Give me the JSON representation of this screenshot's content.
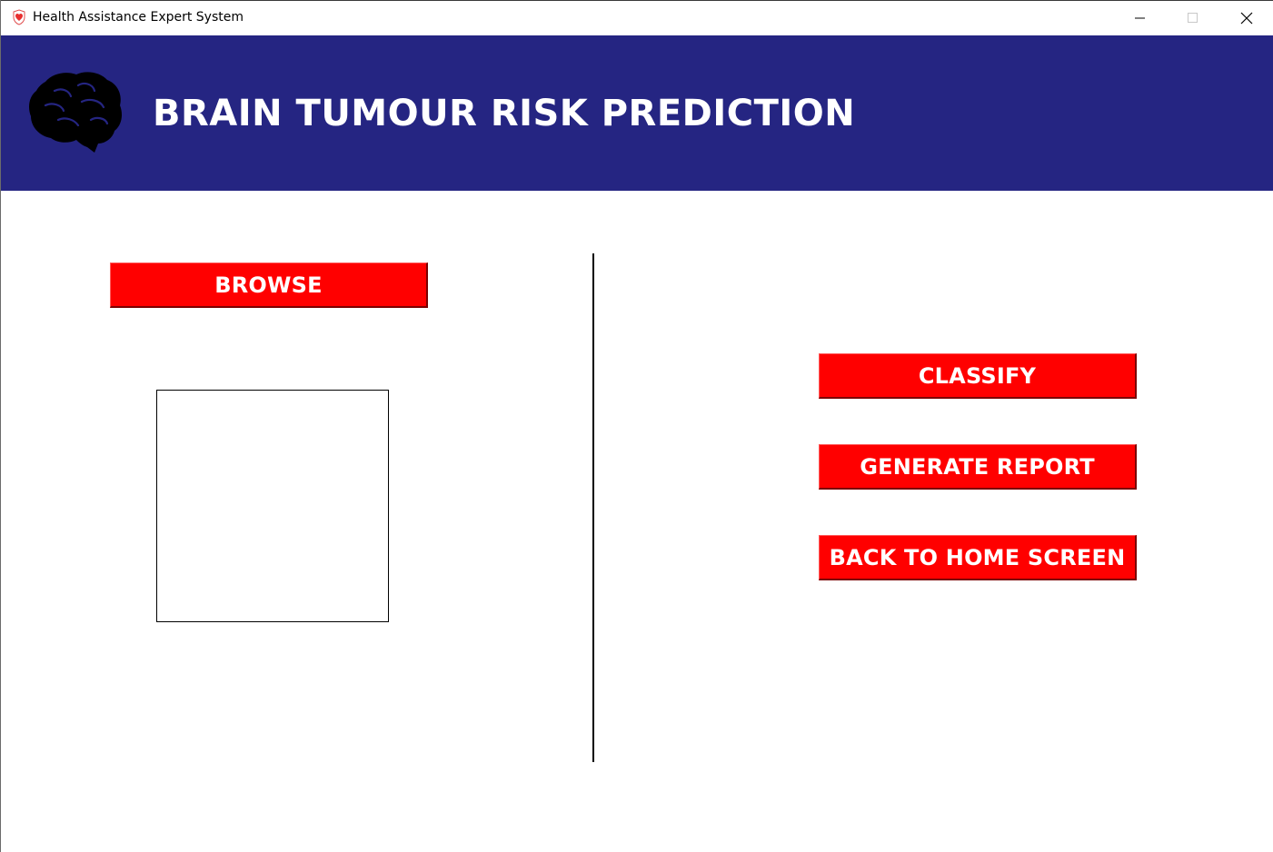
{
  "window": {
    "title": "Health Assistance Expert System",
    "icon": "heart-shield-icon"
  },
  "header": {
    "title": "BRAIN TUMOUR RISK PREDICTION",
    "icon": "brain-icon",
    "background_color": "#252582"
  },
  "left_panel": {
    "browse_label": "BROWSE",
    "preview_icon": "image-preview"
  },
  "right_panel": {
    "classify_label": "CLASSIFY",
    "report_label": "GENERATE REPORT",
    "home_label": "BACK TO HOME SCREEN"
  },
  "colors": {
    "button": "#ff0000",
    "button_text": "#ffffff",
    "header": "#252582"
  }
}
